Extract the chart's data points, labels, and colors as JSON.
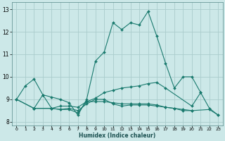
{
  "xlabel": "Humidex (Indice chaleur)",
  "ylabel": "",
  "xlim": [
    -0.5,
    23.5
  ],
  "ylim": [
    7.85,
    13.3
  ],
  "xticks": [
    0,
    1,
    2,
    3,
    4,
    5,
    6,
    7,
    8,
    9,
    10,
    11,
    12,
    13,
    14,
    15,
    16,
    17,
    18,
    19,
    20,
    21,
    22,
    23
  ],
  "yticks": [
    8,
    9,
    10,
    11,
    12,
    13
  ],
  "bg_color": "#cce8e8",
  "grid_color": "#aacccc",
  "line_color": "#1a7a6e",
  "lines": [
    {
      "x": [
        0,
        1,
        2,
        3,
        4,
        5,
        6,
        7,
        8,
        9,
        10,
        11,
        12,
        13,
        14,
        15,
        16,
        17,
        18,
        19,
        20,
        21
      ],
      "y": [
        9.0,
        9.6,
        9.9,
        9.2,
        9.1,
        9.0,
        8.85,
        8.3,
        9.0,
        10.7,
        11.1,
        12.4,
        12.1,
        12.4,
        12.3,
        12.9,
        11.8,
        10.6,
        9.5,
        10.0,
        10.0,
        9.3
      ]
    },
    {
      "x": [
        0,
        2,
        3,
        4,
        5,
        6,
        7,
        8,
        9,
        10,
        11,
        12,
        13,
        14,
        15,
        16,
        17,
        18,
        19,
        20,
        22,
        23
      ],
      "y": [
        9.0,
        8.6,
        9.2,
        8.6,
        8.55,
        8.6,
        8.5,
        8.8,
        9.0,
        9.0,
        8.8,
        8.7,
        8.75,
        8.75,
        8.75,
        8.7,
        8.65,
        8.6,
        8.55,
        8.5,
        8.55,
        8.3
      ]
    },
    {
      "x": [
        0,
        2,
        4,
        5,
        6,
        7,
        8,
        9,
        10,
        11,
        12,
        13,
        14,
        15,
        16,
        17,
        20,
        21,
        22,
        23
      ],
      "y": [
        9.0,
        8.6,
        8.6,
        8.7,
        8.7,
        8.65,
        8.9,
        9.05,
        9.3,
        9.4,
        9.5,
        9.55,
        9.6,
        9.7,
        9.75,
        9.5,
        8.7,
        9.3,
        8.6,
        8.3
      ]
    },
    {
      "x": [
        2,
        4,
        5,
        6,
        7,
        8,
        9,
        10,
        11,
        12,
        13,
        14,
        15,
        16,
        17,
        18,
        19,
        20
      ],
      "y": [
        8.6,
        8.6,
        8.55,
        8.55,
        8.4,
        8.9,
        8.9,
        8.9,
        8.85,
        8.8,
        8.8,
        8.8,
        8.8,
        8.75,
        8.65,
        8.6,
        8.5,
        8.5
      ]
    }
  ]
}
